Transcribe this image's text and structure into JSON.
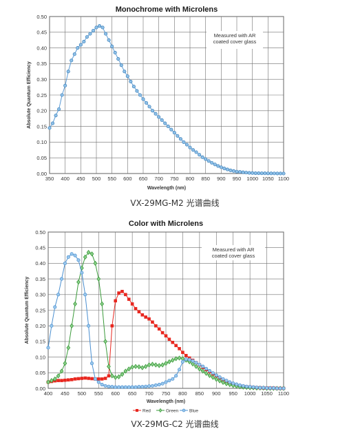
{
  "chart_data": [
    {
      "type": "line",
      "title": "Monochrome with Microlens",
      "xlabel": "Wavelength (nm)",
      "ylabel": "Absolute Quantum Efficiency",
      "xlim": [
        350,
        1100
      ],
      "ylim": [
        0,
        0.5
      ],
      "xticks": [
        "350",
        "400",
        "450",
        "500",
        "550",
        "600",
        "650",
        "700",
        "750",
        "800",
        "850",
        "900",
        "950",
        "1000",
        "1050",
        "1100"
      ],
      "yticks": [
        "0.00",
        "0.05",
        "0.10",
        "0.15",
        "0.20",
        "0.25",
        "0.30",
        "0.35",
        "0.40",
        "0.45",
        "0.50"
      ],
      "grid": true,
      "annotation": [
        "Measured with AR",
        "coated cover glass"
      ],
      "caption": "VX-29MG-M2 光谱曲线",
      "colors": {
        "line": "#5b9bd5",
        "marker_fill": "#8fc1e8",
        "marker_stroke": "#3d7fb8"
      },
      "series": [
        {
          "x": [
            350,
            360,
            370,
            380,
            390,
            400,
            410,
            420,
            430,
            440,
            450,
            460,
            470,
            480,
            490,
            500,
            510,
            520,
            530,
            540,
            550,
            560,
            570,
            580,
            590,
            600,
            610,
            620,
            630,
            640,
            650,
            660,
            670,
            680,
            690,
            700,
            710,
            720,
            730,
            740,
            750,
            760,
            770,
            780,
            790,
            800,
            810,
            820,
            830,
            840,
            850,
            860,
            870,
            880,
            890,
            900,
            910,
            920,
            930,
            940,
            950,
            960,
            970,
            980,
            990,
            1000,
            1010,
            1020,
            1030,
            1040,
            1050,
            1060,
            1070,
            1080,
            1090,
            1100
          ],
          "y": [
            0.145,
            0.16,
            0.185,
            0.205,
            0.25,
            0.28,
            0.325,
            0.36,
            0.38,
            0.4,
            0.41,
            0.42,
            0.435,
            0.445,
            0.455,
            0.465,
            0.47,
            0.465,
            0.445,
            0.425,
            0.405,
            0.385,
            0.365,
            0.345,
            0.325,
            0.31,
            0.293,
            0.277,
            0.263,
            0.25,
            0.237,
            0.225,
            0.213,
            0.2,
            0.19,
            0.18,
            0.17,
            0.16,
            0.15,
            0.14,
            0.13,
            0.12,
            0.11,
            0.1,
            0.092,
            0.083,
            0.075,
            0.068,
            0.06,
            0.052,
            0.046,
            0.04,
            0.034,
            0.029,
            0.024,
            0.02,
            0.016,
            0.013,
            0.01,
            0.008,
            0.006,
            0.005,
            0.004,
            0.003,
            0.002,
            0.0015,
            0.001,
            0.001,
            0.0008,
            0.0006,
            0.0005,
            0.0004,
            0.0003,
            0.0002,
            0.0001,
            0.0
          ]
        }
      ]
    },
    {
      "type": "line",
      "title": "Color with Microlens",
      "xlabel": "Wavelength (nm)",
      "ylabel": "Absolute Quantum Efficiency",
      "xlim": [
        400,
        1100
      ],
      "ylim": [
        0,
        0.5
      ],
      "xticks": [
        "400",
        "450",
        "500",
        "550",
        "600",
        "650",
        "700",
        "750",
        "800",
        "850",
        "900",
        "950",
        "1000",
        "1050",
        "1100"
      ],
      "yticks": [
        "0.00",
        "0.05",
        "0.10",
        "0.15",
        "0.20",
        "0.25",
        "0.30",
        "0.35",
        "0.40",
        "0.45",
        "0.50"
      ],
      "grid": true,
      "annotation": [
        "Measured with AR",
        "coated cover glass"
      ],
      "caption": "VX-29MG-C2 光谱曲线",
      "legend_position": "bottom",
      "series": [
        {
          "name": "Red",
          "color": "#e8271f",
          "marker": "square",
          "x": [
            400,
            410,
            420,
            430,
            440,
            450,
            460,
            470,
            480,
            490,
            500,
            510,
            520,
            530,
            540,
            550,
            560,
            570,
            580,
            590,
            600,
            610,
            620,
            630,
            640,
            650,
            660,
            670,
            680,
            690,
            700,
            710,
            720,
            730,
            740,
            750,
            760,
            770,
            780,
            790,
            800,
            810,
            820,
            830,
            840,
            850,
            860,
            870,
            880,
            890,
            900,
            910,
            920,
            930,
            940,
            950,
            960,
            970,
            980,
            990,
            1000,
            1010,
            1020,
            1030,
            1040,
            1050,
            1060,
            1070,
            1080,
            1090,
            1100
          ],
          "y": [
            0.02,
            0.022,
            0.024,
            0.025,
            0.025,
            0.026,
            0.027,
            0.028,
            0.03,
            0.031,
            0.032,
            0.033,
            0.032,
            0.031,
            0.03,
            0.03,
            0.03,
            0.032,
            0.04,
            0.2,
            0.28,
            0.305,
            0.31,
            0.3,
            0.285,
            0.27,
            0.255,
            0.245,
            0.235,
            0.228,
            0.222,
            0.212,
            0.2,
            0.19,
            0.178,
            0.168,
            0.157,
            0.147,
            0.137,
            0.127,
            0.115,
            0.105,
            0.097,
            0.09,
            0.082,
            0.075,
            0.067,
            0.06,
            0.053,
            0.046,
            0.04,
            0.034,
            0.028,
            0.023,
            0.018,
            0.014,
            0.011,
            0.008,
            0.006,
            0.005,
            0.004,
            0.003,
            0.002,
            0.002,
            0.001,
            0.001,
            0.001,
            0.001,
            0.0,
            0.0,
            0.0
          ]
        },
        {
          "name": "Green",
          "color": "#3a9a3a",
          "marker": "diamond",
          "x": [
            400,
            410,
            420,
            430,
            440,
            450,
            460,
            470,
            480,
            490,
            500,
            510,
            520,
            530,
            540,
            550,
            560,
            570,
            580,
            590,
            600,
            610,
            620,
            630,
            640,
            650,
            660,
            670,
            680,
            690,
            700,
            710,
            720,
            730,
            740,
            750,
            760,
            770,
            780,
            790,
            800,
            810,
            820,
            830,
            840,
            850,
            860,
            870,
            880,
            890,
            900,
            910,
            920,
            930,
            940,
            950,
            960,
            970,
            980,
            990,
            1000,
            1010,
            1020,
            1030,
            1040,
            1050,
            1060,
            1070,
            1080,
            1090,
            1100
          ],
          "y": [
            0.02,
            0.025,
            0.03,
            0.04,
            0.055,
            0.08,
            0.13,
            0.2,
            0.27,
            0.34,
            0.385,
            0.42,
            0.435,
            0.43,
            0.4,
            0.35,
            0.27,
            0.15,
            0.07,
            0.04,
            0.035,
            0.037,
            0.045,
            0.055,
            0.062,
            0.068,
            0.07,
            0.069,
            0.066,
            0.07,
            0.075,
            0.077,
            0.075,
            0.073,
            0.075,
            0.08,
            0.085,
            0.09,
            0.095,
            0.097,
            0.095,
            0.09,
            0.085,
            0.078,
            0.07,
            0.062,
            0.055,
            0.048,
            0.041,
            0.035,
            0.029,
            0.024,
            0.019,
            0.015,
            0.012,
            0.009,
            0.007,
            0.005,
            0.004,
            0.003,
            0.002,
            0.002,
            0.001,
            0.001,
            0.001,
            0.0,
            0.0,
            0.0,
            0.0,
            0.0,
            0.0
          ]
        },
        {
          "name": "Blue",
          "color": "#4a8fd0",
          "marker": "circle",
          "x": [
            400,
            410,
            420,
            430,
            440,
            450,
            460,
            470,
            480,
            490,
            500,
            510,
            520,
            530,
            540,
            550,
            560,
            570,
            580,
            590,
            600,
            610,
            620,
            630,
            640,
            650,
            660,
            670,
            680,
            690,
            700,
            710,
            720,
            730,
            740,
            750,
            760,
            770,
            780,
            790,
            800,
            810,
            820,
            830,
            840,
            850,
            860,
            870,
            880,
            890,
            900,
            910,
            920,
            930,
            940,
            950,
            960,
            970,
            980,
            990,
            1000,
            1010,
            1020,
            1030,
            1040,
            1050,
            1060,
            1070,
            1080,
            1090,
            1100
          ],
          "y": [
            0.13,
            0.2,
            0.26,
            0.3,
            0.35,
            0.4,
            0.42,
            0.43,
            0.425,
            0.41,
            0.37,
            0.3,
            0.2,
            0.08,
            0.03,
            0.02,
            0.012,
            0.008,
            0.006,
            0.005,
            0.004,
            0.004,
            0.004,
            0.004,
            0.004,
            0.004,
            0.004,
            0.005,
            0.005,
            0.006,
            0.007,
            0.008,
            0.01,
            0.012,
            0.015,
            0.02,
            0.025,
            0.03,
            0.04,
            0.06,
            0.085,
            0.093,
            0.092,
            0.088,
            0.082,
            0.076,
            0.07,
            0.063,
            0.056,
            0.049,
            0.042,
            0.036,
            0.03,
            0.025,
            0.02,
            0.016,
            0.013,
            0.01,
            0.008,
            0.006,
            0.005,
            0.004,
            0.003,
            0.002,
            0.002,
            0.001,
            0.001,
            0.001,
            0.0,
            0.0,
            0.0
          ]
        }
      ]
    }
  ]
}
